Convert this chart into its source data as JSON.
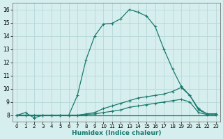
{
  "xlabel": "Humidex (Indice chaleur)",
  "bg_color": "#d6eeee",
  "grid_color": "#b8d8d8",
  "line_color": "#1a7a6e",
  "xlim": [
    -0.5,
    23.5
  ],
  "ylim": [
    7.5,
    16.5
  ],
  "xticks": [
    0,
    1,
    2,
    3,
    4,
    5,
    6,
    7,
    8,
    9,
    10,
    11,
    12,
    13,
    14,
    15,
    16,
    17,
    18,
    19,
    20,
    21,
    22,
    23
  ],
  "yticks": [
    8,
    9,
    10,
    11,
    12,
    13,
    14,
    15,
    16
  ],
  "curve1_x": [
    0,
    1,
    2,
    3,
    4,
    5,
    6,
    7,
    8,
    9,
    10,
    11,
    12,
    13,
    14,
    15,
    16,
    17,
    18,
    19,
    20,
    21,
    22,
    23
  ],
  "curve1_y": [
    8.0,
    8.2,
    7.8,
    8.0,
    8.0,
    8.0,
    8.0,
    9.5,
    12.2,
    14.0,
    14.9,
    14.95,
    15.3,
    16.0,
    15.8,
    15.5,
    14.7,
    13.0,
    11.5,
    10.2,
    9.5,
    8.5,
    8.1,
    8.1
  ],
  "curve2_x": [
    0,
    1,
    2,
    3,
    4,
    5,
    6,
    7,
    8,
    9,
    10,
    11,
    12,
    13,
    14,
    15,
    16,
    17,
    18,
    19,
    20,
    21,
    22,
    23
  ],
  "curve2_y": [
    8.0,
    8.0,
    8.0,
    8.0,
    8.0,
    8.0,
    8.0,
    8.0,
    8.1,
    8.2,
    8.5,
    8.7,
    8.9,
    9.1,
    9.3,
    9.4,
    9.5,
    9.6,
    9.8,
    10.1,
    9.5,
    8.4,
    8.1,
    8.1
  ],
  "curve3_x": [
    0,
    1,
    2,
    3,
    4,
    5,
    6,
    7,
    8,
    9,
    10,
    11,
    12,
    13,
    14,
    15,
    16,
    17,
    18,
    19,
    20,
    21,
    22,
    23
  ],
  "curve3_y": [
    8.0,
    8.0,
    8.0,
    8.0,
    8.0,
    8.0,
    8.0,
    8.0,
    8.05,
    8.1,
    8.2,
    8.3,
    8.4,
    8.6,
    8.7,
    8.8,
    8.9,
    9.0,
    9.1,
    9.2,
    9.0,
    8.2,
    8.05,
    8.05
  ],
  "curve4_x": [
    0,
    1,
    2,
    3,
    4,
    5,
    6,
    7,
    8,
    9,
    10,
    11,
    12,
    13,
    14,
    15,
    16,
    17,
    18,
    19,
    20,
    21,
    22,
    23
  ],
  "curve4_y": [
    8.0,
    8.0,
    8.0,
    8.0,
    8.0,
    8.0,
    8.0,
    8.0,
    8.0,
    8.0,
    8.0,
    8.0,
    8.0,
    8.0,
    8.0,
    8.0,
    8.0,
    8.0,
    8.0,
    8.0,
    8.0,
    8.0,
    8.0,
    8.0
  ]
}
